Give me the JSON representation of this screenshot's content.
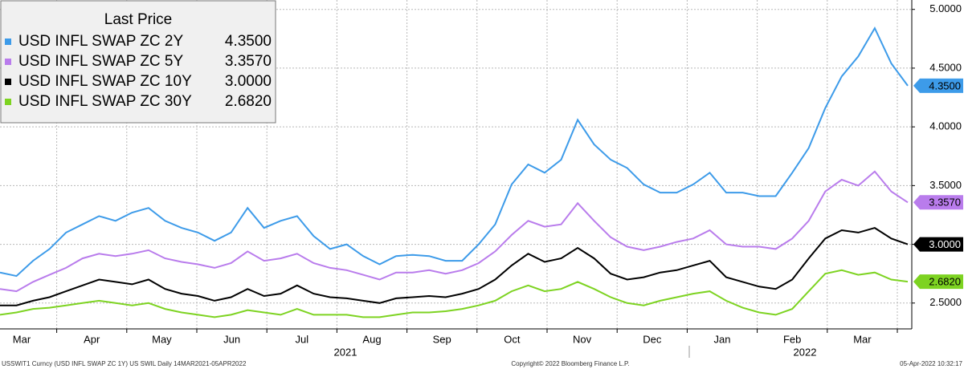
{
  "chart_data": {
    "type": "line",
    "legend_title": "Last Price",
    "legend_position": "upper left",
    "grid": true,
    "ylim": [
      2.28,
      5.08
    ],
    "yticks": [
      {
        "value": 2.5,
        "label": "2.5000"
      },
      {
        "value": 3,
        "label": "3.0000"
      },
      {
        "value": 3.5,
        "label": "3.5000"
      },
      {
        "value": 4,
        "label": "4.0000"
      },
      {
        "value": 4.5,
        "label": "4.5000"
      },
      {
        "value": 5,
        "label": "5.0000"
      }
    ],
    "x_tick_labels": [
      "Mar",
      "Apr",
      "May",
      "Jun",
      "Jul",
      "Aug",
      "Sep",
      "Oct",
      "Nov",
      "Dec",
      "Jan",
      "Feb",
      "Mar"
    ],
    "year_labels": [
      "2021",
      "2022"
    ],
    "series": [
      {
        "name": "USD INFL SWAP ZC 2Y",
        "color": "#3d9be9",
        "last": {
          "value": 4.35,
          "label": "4.3500"
        },
        "values": [
          2.76,
          2.73,
          2.86,
          2.96,
          3.1,
          3.17,
          3.24,
          3.2,
          3.27,
          3.31,
          3.2,
          3.14,
          3.1,
          3.03,
          3.1,
          3.31,
          3.14,
          3.2,
          3.24,
          3.07,
          2.96,
          3.0,
          2.9,
          2.83,
          2.9,
          2.91,
          2.9,
          2.86,
          2.86,
          3.0,
          3.17,
          3.51,
          3.68,
          3.61,
          3.72,
          4.06,
          3.85,
          3.72,
          3.65,
          3.51,
          3.44,
          3.44,
          3.51,
          3.61,
          3.44,
          3.44,
          3.41,
          3.41,
          3.61,
          3.82,
          4.16,
          4.43,
          4.6,
          4.84,
          4.54,
          4.35
        ]
      },
      {
        "name": "USD INFL SWAP ZC 5Y",
        "color": "#b97cec",
        "last": {
          "value": 3.357,
          "label": "3.3570"
        },
        "values": [
          2.62,
          2.6,
          2.68,
          2.74,
          2.8,
          2.88,
          2.92,
          2.9,
          2.92,
          2.95,
          2.88,
          2.85,
          2.83,
          2.8,
          2.84,
          2.94,
          2.86,
          2.88,
          2.92,
          2.84,
          2.8,
          2.78,
          2.74,
          2.7,
          2.76,
          2.76,
          2.78,
          2.75,
          2.78,
          2.84,
          2.94,
          3.08,
          3.2,
          3.15,
          3.17,
          3.35,
          3.2,
          3.06,
          2.98,
          2.95,
          2.98,
          3.02,
          3.05,
          3.12,
          3.0,
          2.98,
          2.98,
          2.96,
          3.05,
          3.2,
          3.45,
          3.55,
          3.5,
          3.62,
          3.45,
          3.357
        ]
      },
      {
        "name": "USD INFL SWAP ZC 10Y",
        "color": "#000000",
        "last": {
          "value": 3,
          "label": "3.0000"
        },
        "values": [
          2.48,
          2.48,
          2.52,
          2.55,
          2.6,
          2.65,
          2.7,
          2.68,
          2.66,
          2.7,
          2.62,
          2.58,
          2.56,
          2.52,
          2.55,
          2.62,
          2.56,
          2.58,
          2.65,
          2.58,
          2.55,
          2.54,
          2.52,
          2.5,
          2.54,
          2.55,
          2.56,
          2.55,
          2.58,
          2.62,
          2.7,
          2.82,
          2.92,
          2.85,
          2.88,
          2.97,
          2.88,
          2.75,
          2.7,
          2.72,
          2.76,
          2.78,
          2.82,
          2.86,
          2.72,
          2.68,
          2.64,
          2.62,
          2.7,
          2.88,
          3.05,
          3.12,
          3.1,
          3.14,
          3.05,
          3.0
        ]
      },
      {
        "name": "USD INFL SWAP ZC 30Y",
        "color": "#7dd321",
        "last": {
          "value": 2.682,
          "label": "2.6820"
        },
        "values": [
          2.4,
          2.42,
          2.45,
          2.46,
          2.48,
          2.5,
          2.52,
          2.5,
          2.48,
          2.5,
          2.45,
          2.42,
          2.4,
          2.38,
          2.4,
          2.44,
          2.42,
          2.4,
          2.45,
          2.4,
          2.4,
          2.4,
          2.38,
          2.38,
          2.4,
          2.42,
          2.42,
          2.43,
          2.45,
          2.48,
          2.52,
          2.6,
          2.65,
          2.6,
          2.62,
          2.68,
          2.62,
          2.55,
          2.5,
          2.48,
          2.52,
          2.55,
          2.58,
          2.6,
          2.52,
          2.46,
          2.42,
          2.4,
          2.45,
          2.6,
          2.75,
          2.78,
          2.74,
          2.76,
          2.7,
          2.682
        ]
      }
    ],
    "footer": {
      "left": "USSWIT1 Curncy (USD INFL SWAP ZC 1Y) US SWIL  Daily 14MAR2021-05APR2022",
      "center": "Copyright© 2022 Bloomberg Finance L.P.",
      "right": "05-Apr-2022 10:32:17"
    }
  }
}
